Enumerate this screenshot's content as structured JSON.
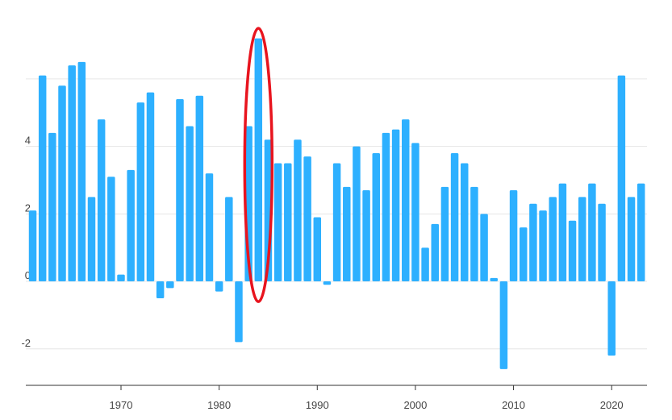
{
  "chart_data": {
    "type": "bar",
    "title": "",
    "xlabel": "",
    "ylabel": "",
    "x": [
      1961,
      1962,
      1963,
      1964,
      1965,
      1966,
      1967,
      1968,
      1969,
      1970,
      1971,
      1972,
      1973,
      1974,
      1975,
      1976,
      1977,
      1978,
      1979,
      1980,
      1981,
      1982,
      1983,
      1984,
      1985,
      1986,
      1987,
      1988,
      1989,
      1990,
      1991,
      1992,
      1993,
      1994,
      1995,
      1996,
      1997,
      1998,
      1999,
      2000,
      2001,
      2002,
      2003,
      2004,
      2005,
      2006,
      2007,
      2008,
      2009,
      2010,
      2011,
      2012,
      2013,
      2014,
      2015,
      2016,
      2017,
      2018,
      2019,
      2020,
      2021,
      2022,
      2023
    ],
    "values": [
      2.1,
      6.1,
      4.4,
      5.8,
      6.4,
      6.5,
      2.5,
      4.8,
      3.1,
      0.2,
      3.3,
      5.3,
      5.6,
      -0.5,
      -0.2,
      5.4,
      4.6,
      5.5,
      3.2,
      -0.3,
      2.5,
      -1.8,
      4.6,
      7.2,
      4.2,
      3.5,
      3.5,
      4.2,
      3.7,
      1.9,
      -0.1,
      3.5,
      2.8,
      4.0,
      2.7,
      3.8,
      4.4,
      4.5,
      4.8,
      4.1,
      1.0,
      1.7,
      2.8,
      3.8,
      3.5,
      2.8,
      2.0,
      0.1,
      -2.6,
      2.7,
      1.6,
      2.3,
      2.1,
      2.5,
      2.9,
      1.8,
      2.5,
      2.9,
      2.3,
      -2.2,
      6.1,
      2.5,
      2.9
    ],
    "xlim": [
      1960.3,
      2023.6
    ],
    "ylim": [
      -3.08,
      7.86
    ],
    "ytick_values": [
      -2,
      0,
      2,
      4
    ],
    "ytick_labels": [
      "-2",
      "0",
      "2",
      "4"
    ],
    "xtick_values": [
      1970,
      1980,
      1990,
      2000,
      2010,
      2020
    ],
    "xtick_labels": [
      "1970",
      "1980",
      "1990",
      "2000",
      "2010",
      "2020"
    ],
    "grid": true,
    "bar_color": "#2db0ff",
    "grid_color": "#e6e6e6",
    "axis_color": "#333333",
    "annotation": {
      "shape": "ellipse",
      "target_x": 1984,
      "y_from": -0.6,
      "y_to": 7.5,
      "color": "#e8141e"
    }
  }
}
